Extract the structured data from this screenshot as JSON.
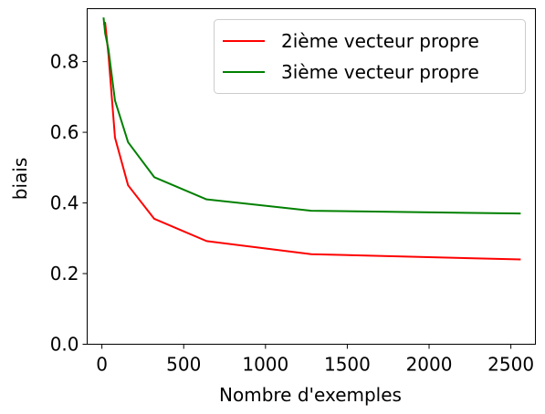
{
  "chart_data": {
    "type": "line",
    "xlabel": "Nombre d'exemples",
    "ylabel": "biais",
    "xlim": [
      -90,
      2650
    ],
    "ylim": [
      0,
      0.95
    ],
    "xticks": [
      0,
      500,
      1000,
      1500,
      2000,
      2500
    ],
    "yticks": [
      0.0,
      0.2,
      0.4,
      0.6,
      0.8
    ],
    "xtick_labels": [
      "0",
      "500",
      "1000",
      "1500",
      "2000",
      "2500"
    ],
    "ytick_labels": [
      "0.0",
      "0.2",
      "0.4",
      "0.6",
      "0.8"
    ],
    "grid": false,
    "legend_position": "top-right",
    "series": [
      {
        "name": "2ième vecteur propre",
        "color": "#ff0000",
        "x": [
          10,
          20,
          40,
          80,
          160,
          320,
          640,
          1280,
          2560
        ],
        "y": [
          0.905,
          0.91,
          0.82,
          0.585,
          0.45,
          0.355,
          0.292,
          0.255,
          0.24
        ]
      },
      {
        "name": "3ième vecteur propre",
        "color": "#008000",
        "x": [
          10,
          20,
          40,
          80,
          160,
          320,
          640,
          1280,
          2560
        ],
        "y": [
          0.925,
          0.88,
          0.835,
          0.69,
          0.572,
          0.473,
          0.41,
          0.378,
          0.37
        ]
      }
    ]
  }
}
